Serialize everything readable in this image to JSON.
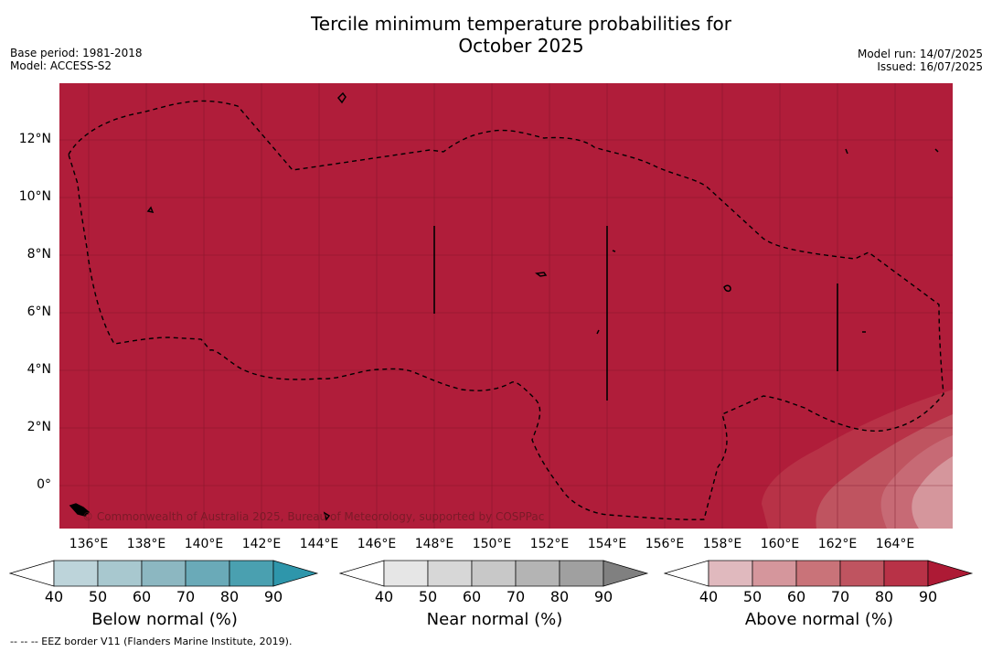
{
  "header": {
    "title_line1": "Tercile minimum temperature probabilities for",
    "title_line2": "October 2025",
    "base_period": "Base period: 1981-2018",
    "model": "Model: ACCESS-S2",
    "model_run": "Model run: 14/07/2025",
    "issued": "Issued: 16/07/2025"
  },
  "map": {
    "background_color": "#b01d3a",
    "lat_labels": [
      "12°N",
      "10°N",
      "8°N",
      "6°N",
      "4°N",
      "2°N",
      "0°"
    ],
    "lon_labels": [
      "136°E",
      "138°E",
      "140°E",
      "142°E",
      "144°E",
      "146°E",
      "148°E",
      "150°E",
      "152°E",
      "154°E",
      "156°E",
      "158°E",
      "160°E",
      "162°E",
      "164°E"
    ],
    "copyright": "© Commonwealth of Australia 2025, Bureau of Meteorology, supported by COSPPac"
  },
  "colorbars": [
    {
      "label": "Below normal (%)",
      "ticks": [
        "40",
        "50",
        "60",
        "70",
        "80",
        "90"
      ],
      "colors": [
        "#ffffff",
        "#bdd4da",
        "#a8c8cf",
        "#8cb7c1",
        "#6aaab8",
        "#4aa0b0",
        "#2e96ab"
      ]
    },
    {
      "label": "Near normal (%)",
      "ticks": [
        "40",
        "50",
        "60",
        "70",
        "80",
        "90"
      ],
      "colors": [
        "#ffffff",
        "#e6e6e6",
        "#d7d7d7",
        "#c8c8c8",
        "#b4b4b4",
        "#a0a0a0",
        "#808080"
      ]
    },
    {
      "label": "Above normal (%)",
      "ticks": [
        "40",
        "50",
        "60",
        "70",
        "80",
        "90"
      ],
      "colors": [
        "#ffffff",
        "#e0b9be",
        "#d5969c",
        "#c97379",
        "#bf5460",
        "#b83247",
        "#ad1a35"
      ]
    }
  ],
  "footer": {
    "eez_note": "--  --  -- EEZ border V11 (Flanders Marine Institute, 2019)."
  }
}
